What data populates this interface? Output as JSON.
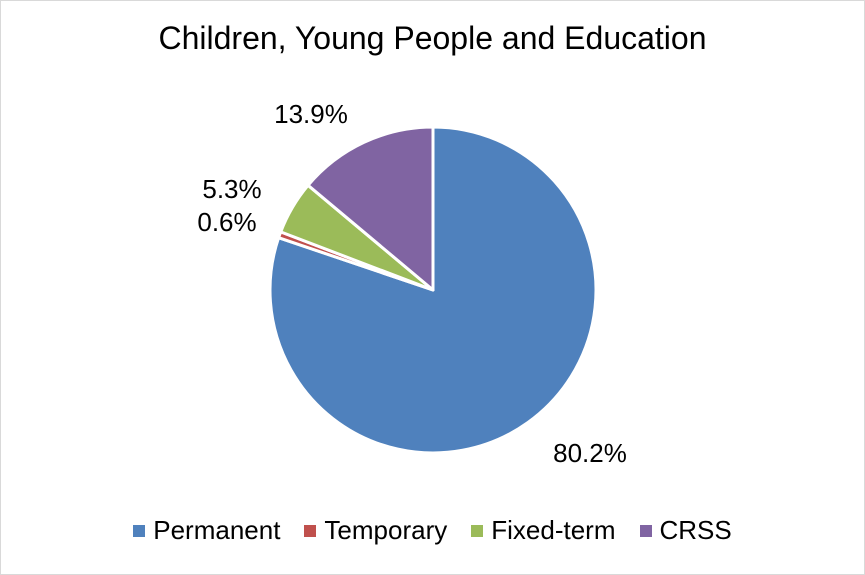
{
  "chart_data": {
    "type": "pie",
    "title": "Children, Young People and Education",
    "slices": [
      {
        "name": "Permanent",
        "value": 80.2,
        "label": "80.2%",
        "color": "#4f81bd"
      },
      {
        "name": "Temporary",
        "value": 0.6,
        "label": "0.6%",
        "color": "#c0504d"
      },
      {
        "name": "Fixed-term",
        "value": 5.3,
        "label": "5.3%",
        "color": "#9bbb59"
      },
      {
        "name": "CRSS",
        "value": 13.9,
        "label": "13.9%",
        "color": "#8064a2"
      }
    ],
    "start_angle_deg": 0,
    "direction": "clockwise",
    "legend_position": "bottom"
  }
}
